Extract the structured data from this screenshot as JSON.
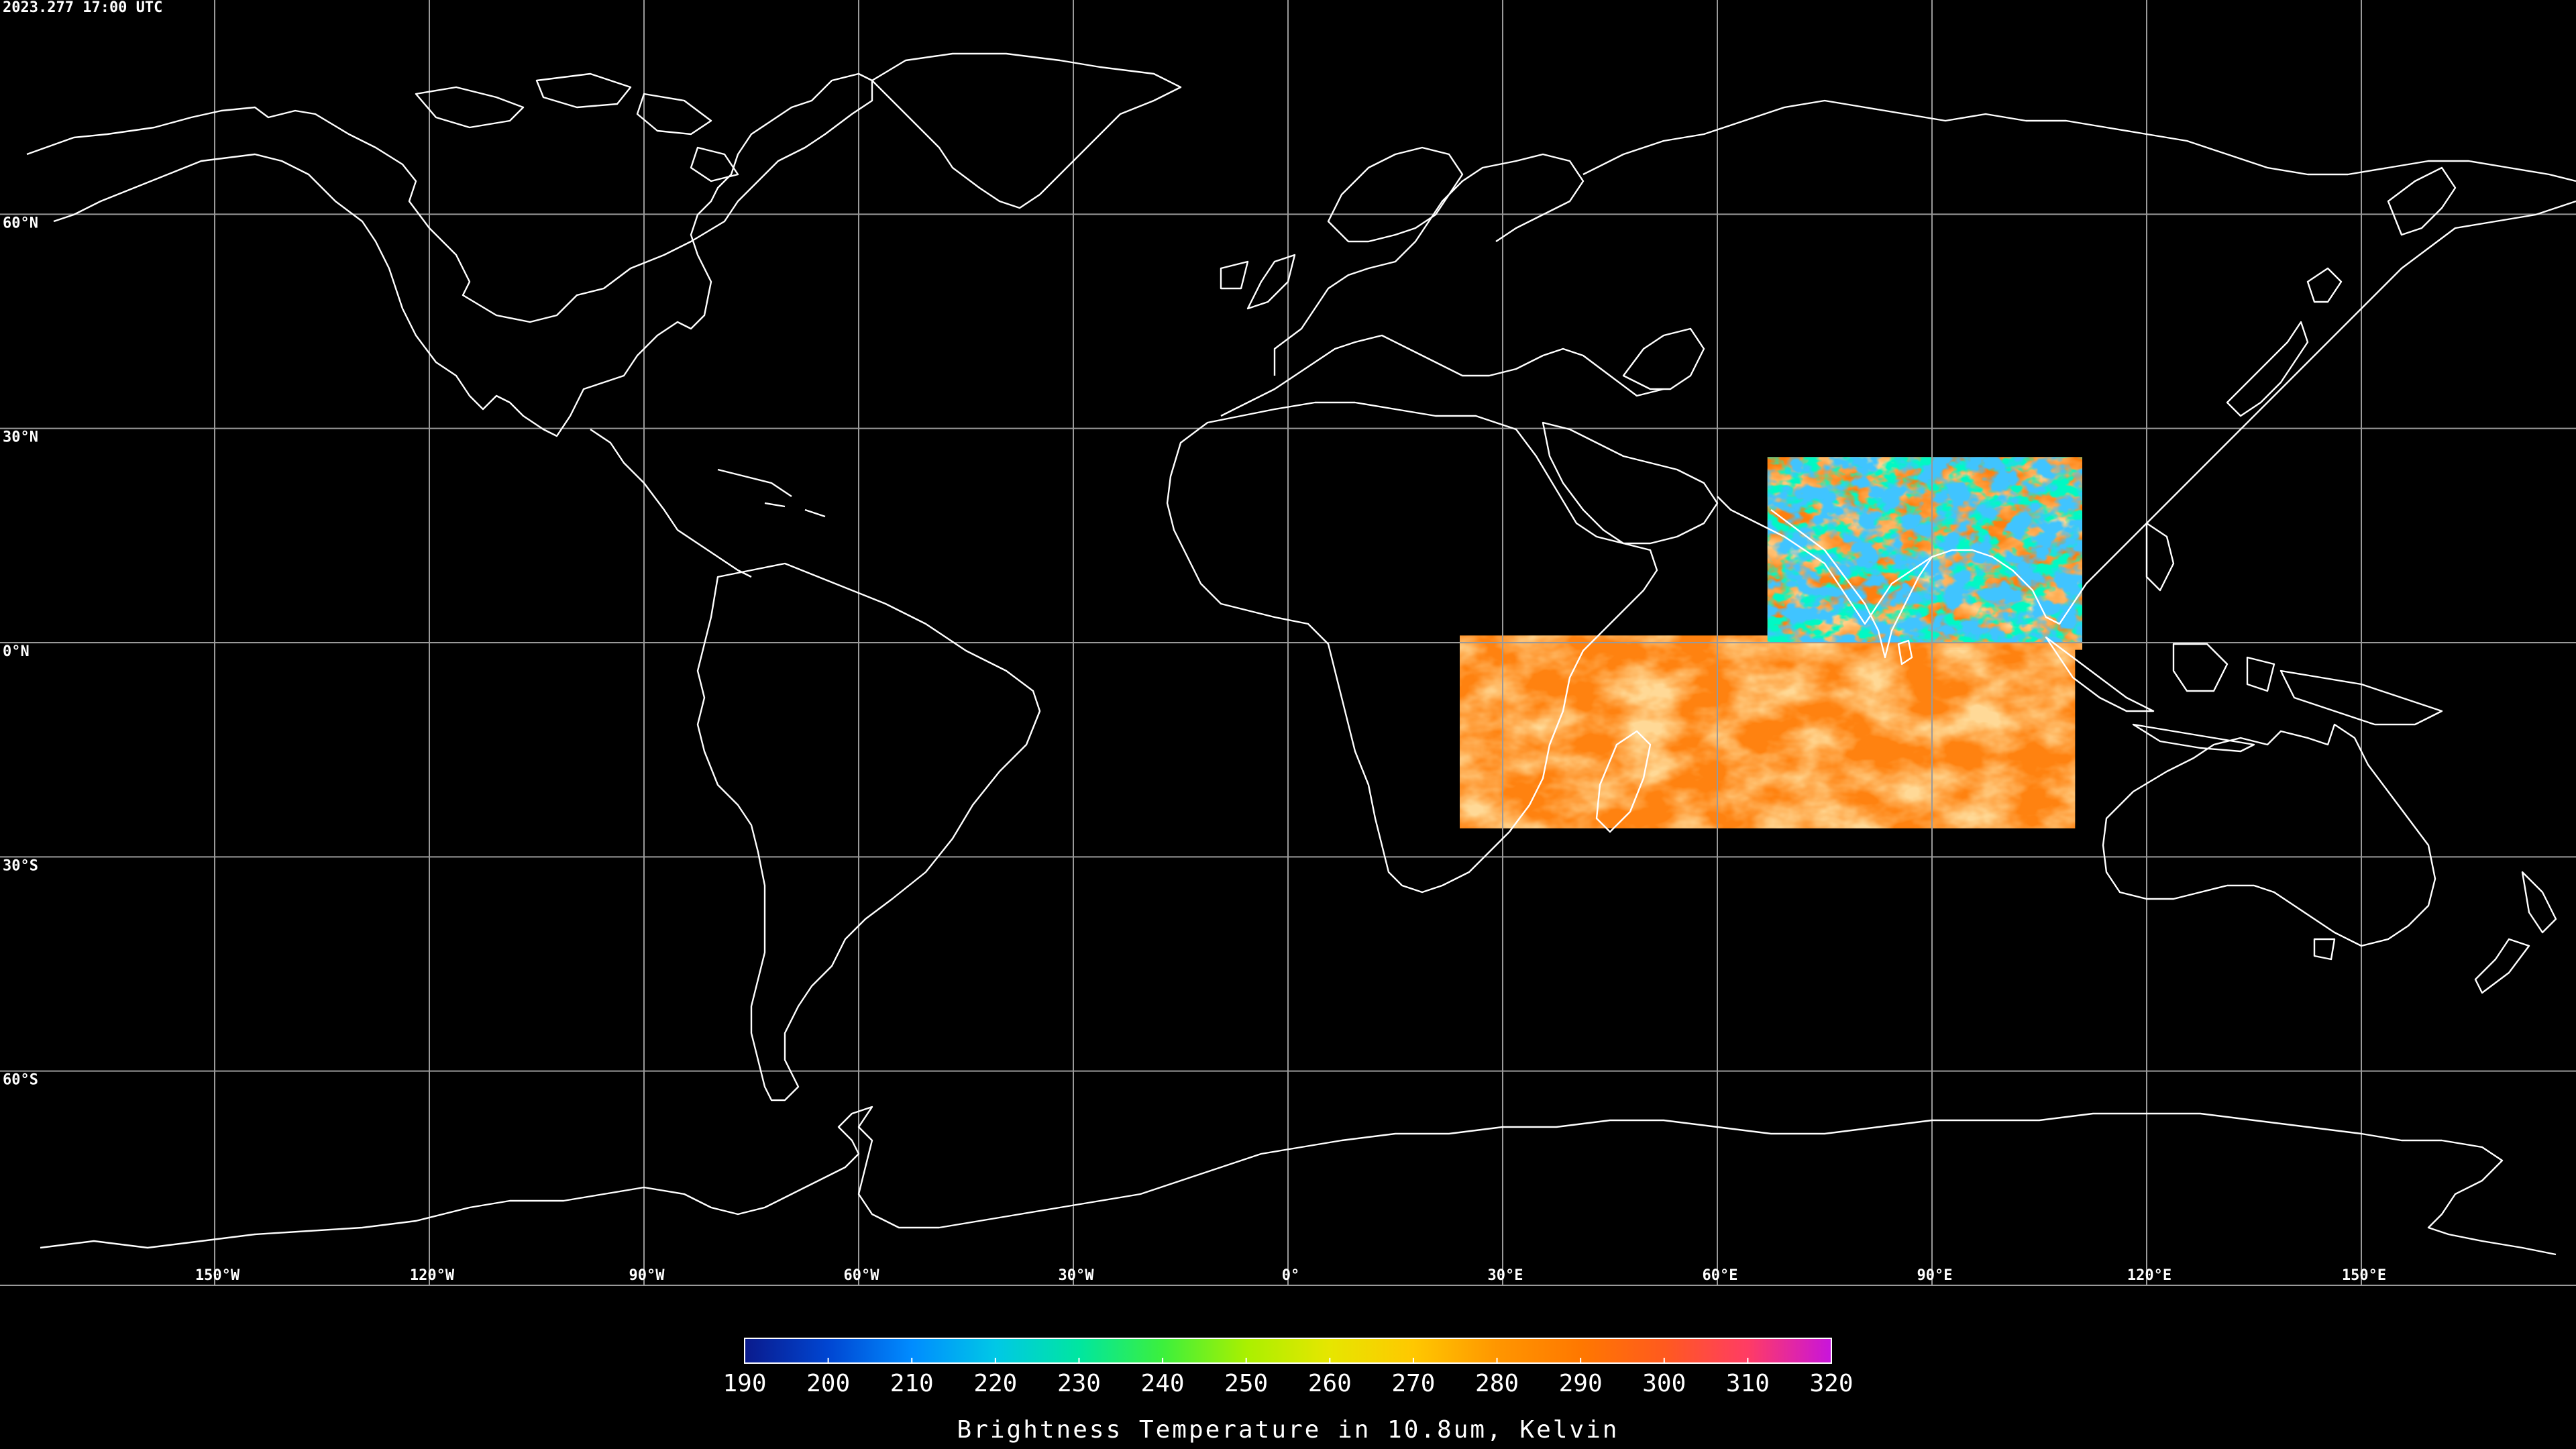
{
  "map": {
    "timestamp": "2023.277 17:00 UTC",
    "projection": "equirectangular",
    "lon_range": [
      -180,
      180
    ],
    "lat_range": [
      -90,
      90
    ],
    "graticule_step_deg": 30,
    "background_color": "#000000",
    "coastline_color": "#ffffff",
    "grid_color": "#9a9a9a",
    "lat_labels": [
      {
        "lat": 60,
        "text": "60°N"
      },
      {
        "lat": 30,
        "text": "30°N"
      },
      {
        "lat": 0,
        "text": "0°N"
      },
      {
        "lat": -30,
        "text": "30°S"
      },
      {
        "lat": -60,
        "text": "60°S"
      }
    ],
    "lon_labels": [
      {
        "lon": -150,
        "text": "150°W"
      },
      {
        "lon": -120,
        "text": "120°W"
      },
      {
        "lon": -90,
        "text": "90°W"
      },
      {
        "lon": -60,
        "text": "60°W"
      },
      {
        "lon": -30,
        "text": "30°W"
      },
      {
        "lon": 0,
        "text": "0°"
      },
      {
        "lon": 30,
        "text": "30°E"
      },
      {
        "lon": 60,
        "text": "60°E"
      },
      {
        "lon": 90,
        "text": "90°E"
      },
      {
        "lon": 120,
        "text": "120°E"
      },
      {
        "lon": 150,
        "text": "150°E"
      }
    ],
    "data_coverage": [
      {
        "name": "north-block",
        "lon": [
          67,
          111
        ],
        "lat": [
          -1,
          26
        ],
        "base_color": "#ff7f0e"
      },
      {
        "name": "south-block",
        "lon": [
          24,
          110
        ],
        "lat": [
          -26,
          1
        ],
        "base_color": "#ff8210"
      }
    ]
  },
  "colorbar": {
    "title": "Brightness Temperature in 10.8um, Kelvin",
    "min": 190,
    "max": 320,
    "ticks": [
      190,
      200,
      210,
      220,
      230,
      240,
      250,
      260,
      270,
      280,
      290,
      300,
      310,
      320
    ],
    "tick_labels": [
      "190",
      "200",
      "210",
      "220",
      "230",
      "240",
      "250",
      "260",
      "270",
      "280",
      "290",
      "300",
      "310",
      "320"
    ],
    "colors": [
      "#0a1a8c",
      "#0046d2",
      "#008cff",
      "#00c8e6",
      "#00e6a0",
      "#3cf03c",
      "#aaf000",
      "#e6e600",
      "#ffc800",
      "#ff9600",
      "#ff7800",
      "#ff5a1e",
      "#ff3c64",
      "#e61ec8",
      "#c814dc"
    ]
  }
}
